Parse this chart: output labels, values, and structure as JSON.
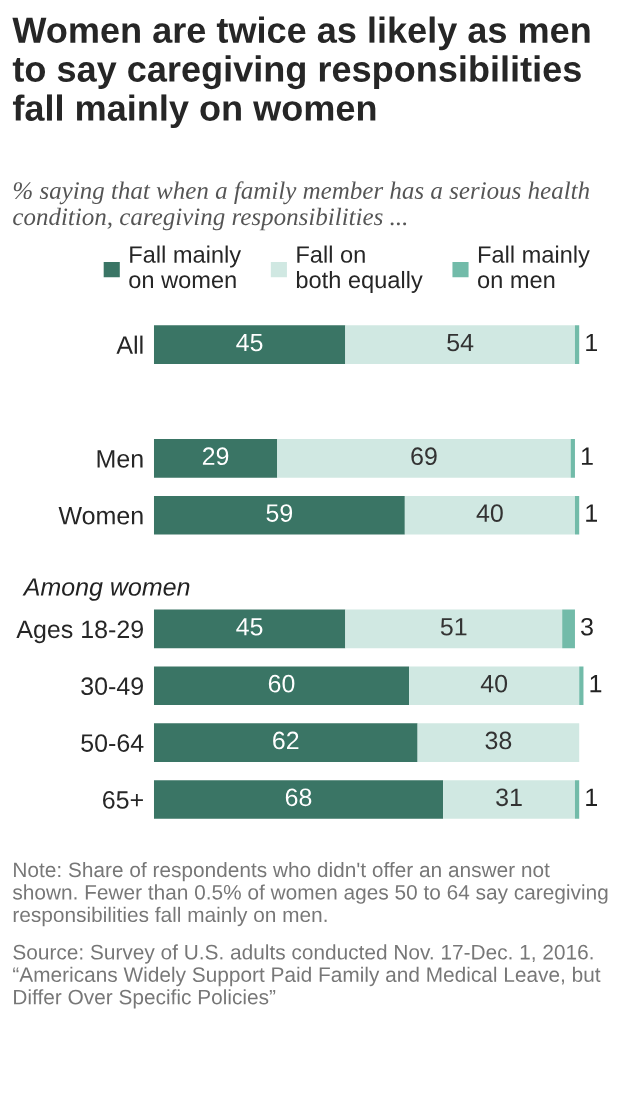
{
  "chart_data": {
    "type": "bar",
    "orientation": "horizontal",
    "stacked": true,
    "title": "Women are twice as likely as men to say caregiving responsibilities fall mainly on women",
    "subtitle": "% saying that when a family member has a serious health condition, caregiving responsibilities ...",
    "categories": [
      "All",
      null,
      "Men",
      "Women",
      "Among women",
      "Ages 18-29",
      "30-49",
      "50-64",
      "65+"
    ],
    "series": [
      {
        "name": "Fall mainly\non women",
        "color": "#3a7565",
        "values": [
          45,
          null,
          29,
          59,
          null,
          45,
          60,
          62,
          68
        ]
      },
      {
        "name": "Fall on\nboth equally",
        "color": "#d0e8e2",
        "values": [
          54,
          null,
          69,
          40,
          null,
          51,
          40,
          38,
          31
        ]
      },
      {
        "name": "Fall mainly\non men",
        "color": "#72bba9",
        "values": [
          1,
          null,
          1,
          1,
          null,
          3,
          1,
          null,
          1
        ]
      }
    ],
    "xlim": [
      0,
      102
    ],
    "tick_labels": "y",
    "data_labels": true,
    "legend": "top",
    "grid": false,
    "annotations": [
      "Note: Share of respondents who didn't offer an answer not shown. Fewer than 0.5% of women ages 50 to 64 say caregiving responsibilities fall mainly on men.",
      "Source: Survey of U.S. adults conducted Nov. 17-Dec. 1, 2016. “Americans Widely Support Paid Family and Medical Leave, but Differ Over Specific Policies”"
    ]
  }
}
